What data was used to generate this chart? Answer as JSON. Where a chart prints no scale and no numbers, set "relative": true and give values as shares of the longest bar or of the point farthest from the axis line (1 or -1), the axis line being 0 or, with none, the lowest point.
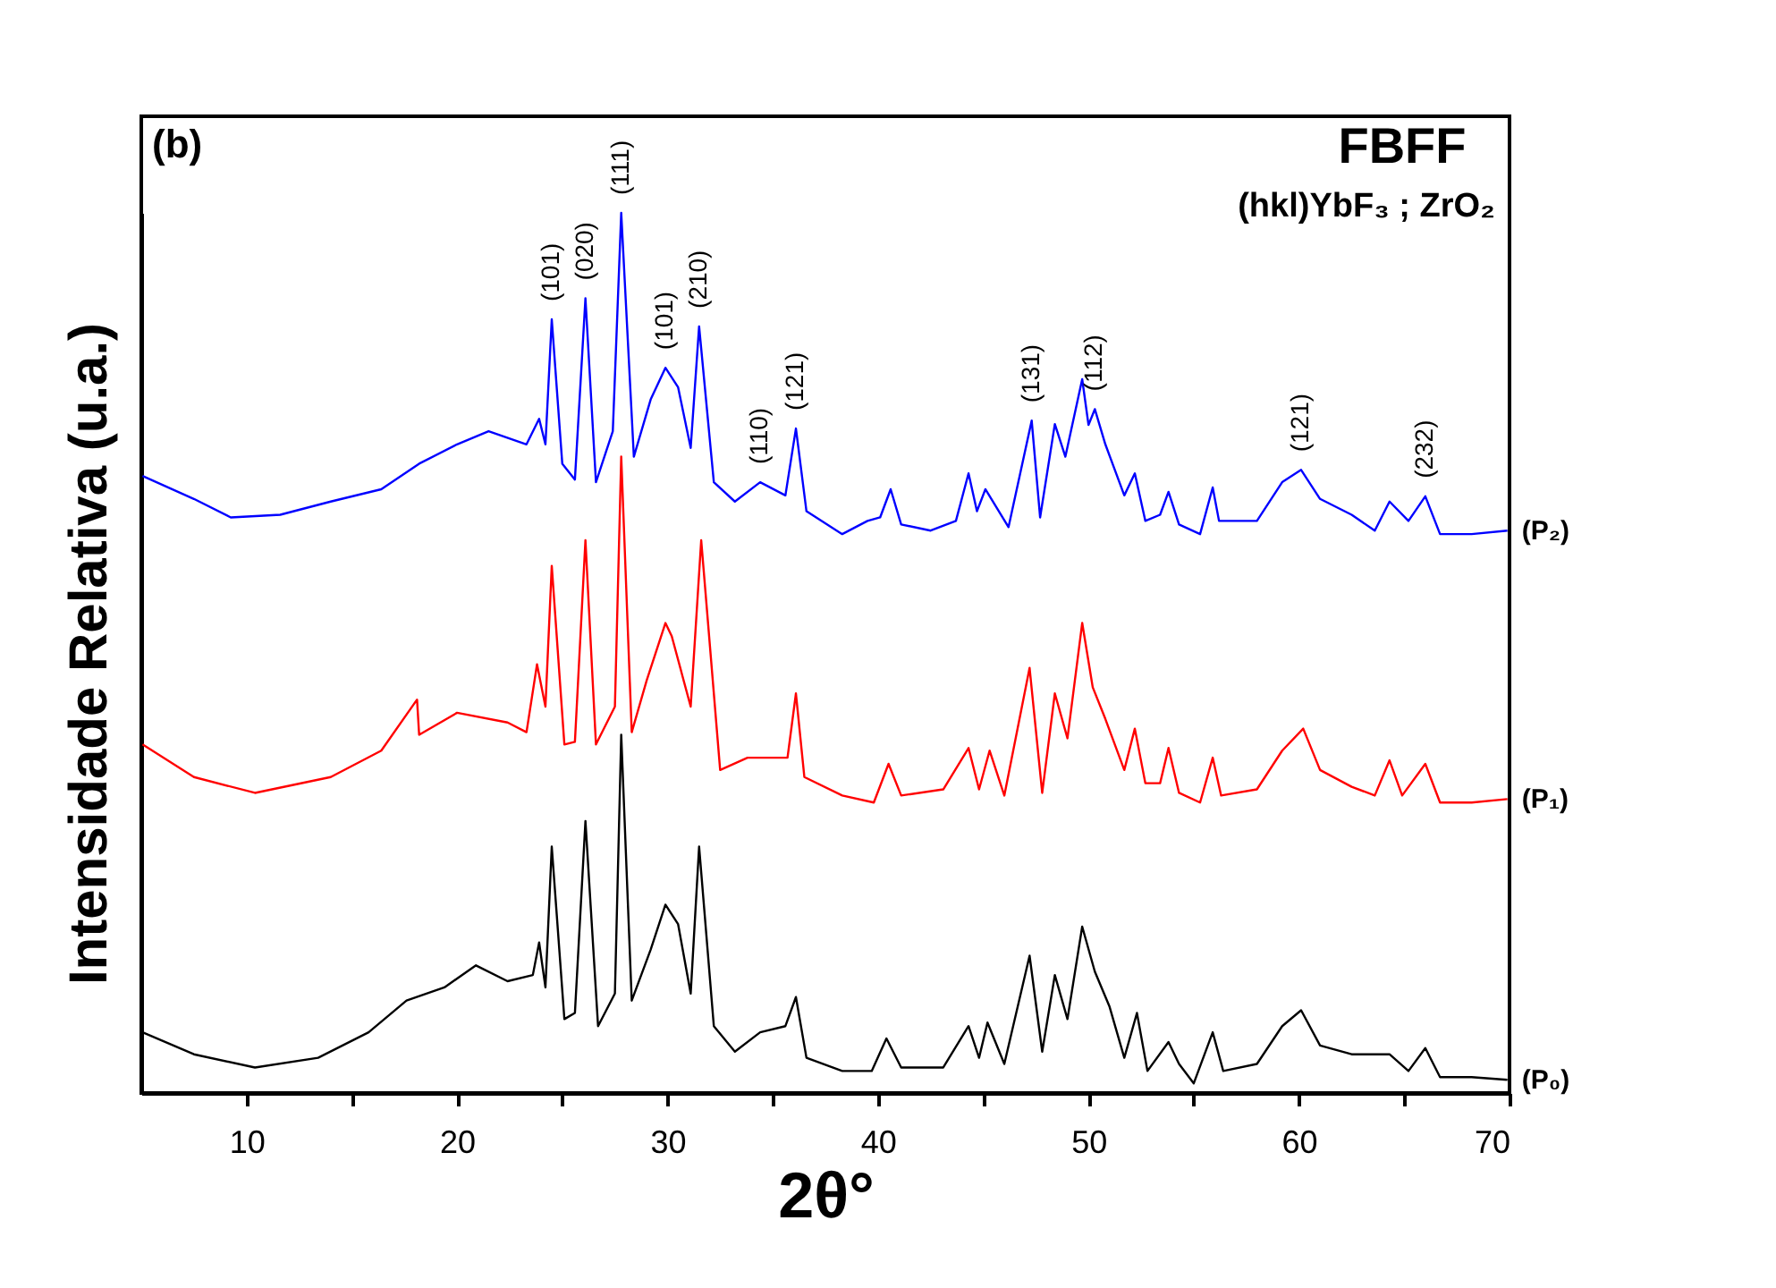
{
  "chart_data": {
    "type": "line",
    "relative": true,
    "xlabel": "2θ°",
    "ylabel": "Intensidade Relativa (u.a.)",
    "xlim": [
      5,
      70
    ],
    "xticks": [
      10,
      {
        "value": 15,
        "label": null
      },
      20,
      {
        "value": 25,
        "label": null
      },
      30,
      {
        "value": 35,
        "label": null
      },
      40,
      {
        "value": 45,
        "label": null
      },
      50,
      {
        "value": 55,
        "label": null
      },
      60,
      {
        "value": 65,
        "label": null
      },
      70
    ],
    "grid": false,
    "legend": false,
    "marker": "none",
    "annotations": [
      "(b)",
      "FBFF",
      "(hkl)YbF₃ ; ZrO₂",
      {
        "text": "(101)",
        "x": 24.5,
        "y": 0.879
      },
      {
        "text": "(020)",
        "x": 26.1,
        "y": 0.903
      },
      {
        "text": "(111)",
        "x": 27.8,
        "y": 1.0
      },
      {
        "text": "(101)",
        "x": 29.9,
        "y": 0.824
      },
      {
        "text": "(210)",
        "x": 31.5,
        "y": 0.871
      },
      {
        "text": "(110)",
        "x": 34.4,
        "y": 0.694
      },
      {
        "text": "(121)",
        "x": 36.1,
        "y": 0.755
      },
      {
        "text": "(131)",
        "x": 47.3,
        "y": 0.764
      },
      {
        "text": "(112)",
        "x": 50.3,
        "y": 0.777
      },
      {
        "text": "(121)",
        "x": 60.1,
        "y": 0.708
      },
      {
        "text": "(232)",
        "x": 66.0,
        "y": 0.678
      }
    ],
    "series": [
      {
        "name": "(P₂)",
        "color": "#0000ff",
        "x": [
          5.06,
          7.5,
          9.25,
          11.6,
          14.0,
          16.4,
          18.2,
          20.0,
          21.5,
          23.3,
          23.9,
          24.2,
          24.5,
          25.0,
          25.6,
          26.1,
          26.6,
          27.4,
          27.8,
          28.4,
          29.2,
          29.9,
          30.5,
          31.1,
          31.5,
          32.2,
          33.2,
          34.4,
          35.6,
          36.1,
          36.6,
          38.3,
          39.5,
          40.1,
          40.6,
          41.1,
          42.5,
          43.7,
          44.3,
          44.7,
          45.1,
          46.2,
          47.3,
          47.7,
          48.4,
          48.9,
          49.7,
          50.0,
          50.3,
          50.8,
          51.7,
          52.2,
          52.7,
          53.4,
          53.8,
          54.3,
          55.3,
          55.9,
          56.2,
          58.0,
          59.2,
          60.1,
          61.0,
          62.5,
          63.6,
          64.3,
          65.2,
          66.0,
          66.7,
          68.2,
          69.9
        ],
        "values": [
          0.701,
          0.675,
          0.654,
          0.657,
          0.672,
          0.686,
          0.715,
          0.737,
          0.752,
          0.737,
          0.766,
          0.737,
          0.879,
          0.715,
          0.697,
          0.903,
          0.694,
          0.752,
          1.0,
          0.723,
          0.788,
          0.824,
          0.802,
          0.733,
          0.871,
          0.694,
          0.672,
          0.694,
          0.679,
          0.755,
          0.661,
          0.635,
          0.65,
          0.654,
          0.686,
          0.646,
          0.639,
          0.65,
          0.704,
          0.661,
          0.686,
          0.643,
          0.764,
          0.654,
          0.76,
          0.723,
          0.811,
          0.759,
          0.777,
          0.737,
          0.679,
          0.704,
          0.65,
          0.657,
          0.683,
          0.646,
          0.635,
          0.688,
          0.65,
          0.65,
          0.694,
          0.708,
          0.675,
          0.657,
          0.639,
          0.672,
          0.65,
          0.678,
          0.635,
          0.635,
          0.639
        ]
      },
      {
        "name": "(P₁)",
        "color": "#ff0000",
        "x": [
          5.06,
          7.5,
          10.4,
          14.0,
          16.4,
          18.1,
          18.2,
          20.0,
          22.4,
          23.3,
          23.8,
          24.2,
          24.5,
          25.1,
          25.6,
          26.1,
          26.6,
          27.5,
          27.8,
          28.3,
          29.0,
          29.9,
          30.2,
          31.1,
          31.6,
          32.5,
          33.8,
          35.7,
          36.1,
          36.5,
          38.3,
          39.8,
          40.5,
          41.1,
          43.1,
          44.3,
          44.8,
          45.3,
          46.0,
          47.2,
          47.8,
          48.4,
          49.0,
          49.7,
          50.2,
          50.8,
          51.7,
          52.2,
          52.7,
          53.4,
          53.8,
          54.3,
          55.3,
          55.9,
          56.3,
          58.0,
          59.2,
          60.2,
          61.0,
          62.5,
          63.6,
          64.3,
          64.9,
          66.0,
          66.7,
          68.2,
          69.9
        ],
        "values": [
          0.396,
          0.359,
          0.341,
          0.359,
          0.389,
          0.447,
          0.407,
          0.432,
          0.421,
          0.41,
          0.487,
          0.439,
          0.599,
          0.396,
          0.399,
          0.628,
          0.396,
          0.439,
          0.723,
          0.41,
          0.468,
          0.534,
          0.519,
          0.439,
          0.628,
          0.367,
          0.381,
          0.381,
          0.454,
          0.359,
          0.338,
          0.33,
          0.374,
          0.338,
          0.345,
          0.392,
          0.345,
          0.389,
          0.338,
          0.483,
          0.341,
          0.454,
          0.403,
          0.534,
          0.461,
          0.425,
          0.367,
          0.414,
          0.352,
          0.352,
          0.392,
          0.341,
          0.33,
          0.381,
          0.338,
          0.345,
          0.389,
          0.414,
          0.367,
          0.348,
          0.338,
          0.378,
          0.338,
          0.374,
          0.33,
          0.33,
          0.334
        ]
      },
      {
        "name": "(P₀)",
        "color": "#000000",
        "x": [
          5.06,
          7.5,
          10.4,
          13.4,
          15.8,
          17.6,
          19.4,
          20.9,
          22.4,
          23.6,
          23.9,
          24.2,
          24.5,
          25.1,
          25.6,
          26.1,
          26.7,
          27.5,
          27.8,
          28.3,
          29.2,
          29.9,
          30.5,
          31.1,
          31.5,
          32.2,
          33.2,
          34.4,
          35.6,
          36.1,
          36.6,
          38.3,
          39.7,
          40.4,
          41.1,
          43.1,
          44.3,
          44.8,
          45.2,
          46.0,
          47.2,
          47.8,
          48.4,
          49.0,
          49.7,
          50.3,
          51.0,
          51.7,
          52.3,
          52.8,
          53.8,
          54.3,
          55.0,
          55.9,
          56.4,
          58.0,
          59.2,
          60.1,
          61.0,
          62.5,
          64.3,
          65.2,
          66.0,
          66.7,
          68.2,
          69.9
        ],
        "values": [
          0.069,
          0.044,
          0.029,
          0.04,
          0.069,
          0.105,
          0.12,
          0.145,
          0.127,
          0.134,
          0.171,
          0.12,
          0.28,
          0.084,
          0.091,
          0.309,
          0.076,
          0.113,
          0.407,
          0.105,
          0.163,
          0.214,
          0.192,
          0.113,
          0.28,
          0.076,
          0.047,
          0.069,
          0.076,
          0.109,
          0.04,
          0.025,
          0.025,
          0.062,
          0.029,
          0.029,
          0.076,
          0.04,
          0.08,
          0.033,
          0.156,
          0.047,
          0.134,
          0.084,
          0.189,
          0.138,
          0.098,
          0.04,
          0.091,
          0.025,
          0.058,
          0.033,
          0.011,
          0.069,
          0.025,
          0.033,
          0.076,
          0.094,
          0.054,
          0.044,
          0.044,
          0.025,
          0.051,
          0.018,
          0.018,
          0.015
        ]
      }
    ]
  }
}
